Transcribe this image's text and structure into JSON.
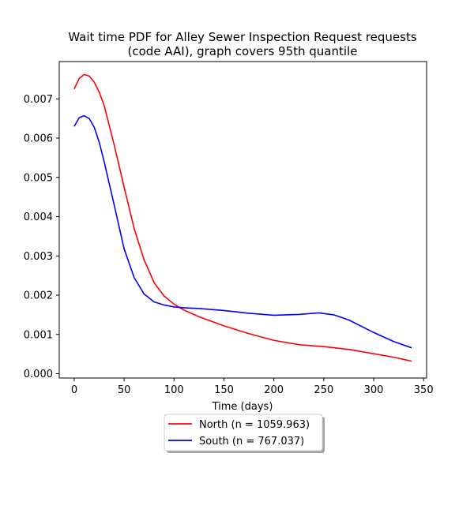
{
  "chart_data": {
    "type": "line",
    "title_lines": [
      "Wait time PDF for Alley Sewer Inspection Request  requests",
      "(code AAI), graph covers 95th quantile"
    ],
    "xlabel": "Time (days)",
    "ylabel": "",
    "xlim": [
      -15,
      353
    ],
    "ylim": [
      -0.00011,
      0.00795
    ],
    "xticks": [
      0,
      50,
      100,
      150,
      200,
      250,
      300,
      350
    ],
    "yticks": [
      0.0,
      0.001,
      0.002,
      0.003,
      0.004,
      0.005,
      0.006,
      0.007
    ],
    "ytick_labels": [
      "0.000",
      "0.001",
      "0.002",
      "0.003",
      "0.004",
      "0.005",
      "0.006",
      "0.007"
    ],
    "legend_position": "below-center",
    "series": [
      {
        "name": "North (n = 1059.963)",
        "color": "#ff0000",
        "x": [
          0,
          5,
          10,
          15,
          20,
          25,
          30,
          40,
          50,
          60,
          70,
          80,
          90,
          100,
          110,
          125,
          150,
          175,
          200,
          225,
          250,
          275,
          300,
          320,
          338
        ],
        "y": [
          0.00725,
          0.00752,
          0.00762,
          0.00758,
          0.00743,
          0.00717,
          0.00683,
          0.00583,
          0.00475,
          0.0037,
          0.0029,
          0.00232,
          0.00198,
          0.00177,
          0.00162,
          0.00145,
          0.00122,
          0.00102,
          0.00085,
          0.00074,
          0.00069,
          0.00062,
          0.00051,
          0.00042,
          0.00032
        ]
      },
      {
        "name": "South (n = 767.037)",
        "color": "#0000ff",
        "x": [
          0,
          5,
          10,
          15,
          20,
          25,
          30,
          40,
          50,
          60,
          70,
          80,
          90,
          100,
          110,
          125,
          150,
          175,
          200,
          225,
          245,
          260,
          275,
          300,
          320,
          338
        ],
        "y": [
          0.0063,
          0.00652,
          0.00657,
          0.0065,
          0.00628,
          0.0059,
          0.0054,
          0.0043,
          0.00318,
          0.00245,
          0.00203,
          0.00183,
          0.00175,
          0.0017,
          0.00168,
          0.00166,
          0.00161,
          0.00154,
          0.00149,
          0.00151,
          0.00155,
          0.0015,
          0.00137,
          0.00105,
          0.00082,
          0.00066
        ]
      }
    ]
  }
}
